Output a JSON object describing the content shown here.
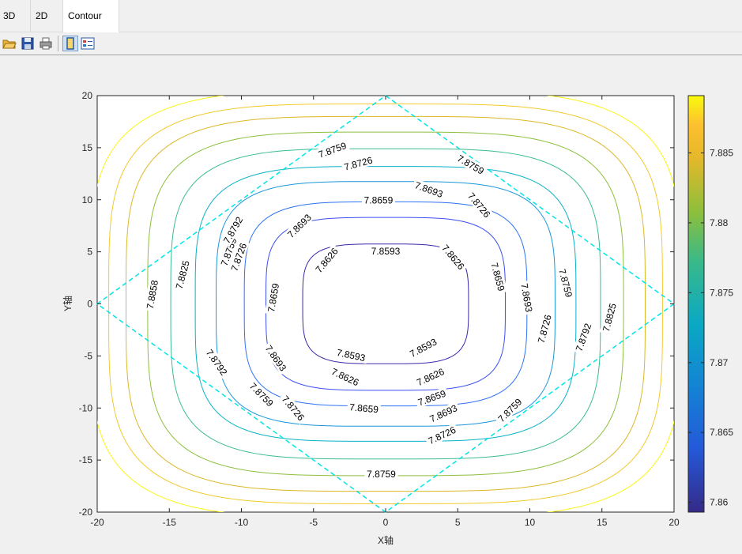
{
  "tabs": [
    {
      "label": "3D"
    },
    {
      "label": "2D"
    },
    {
      "label": "Contour line",
      "active": true
    }
  ],
  "toolbar": {
    "icons": [
      "open-folder-icon",
      "save-icon",
      "print-icon",
      "single-view-icon",
      "property-view-icon"
    ]
  },
  "chart_data": {
    "type": "contour",
    "xlabel": "X轴",
    "ylabel": "Y轴",
    "xlim": [
      -20,
      20
    ],
    "ylim": [
      -20,
      20
    ],
    "xticks": [
      -20,
      -15,
      -10,
      -5,
      0,
      5,
      10,
      15,
      20
    ],
    "yticks": [
      -20,
      -15,
      -10,
      -5,
      0,
      5,
      10,
      15,
      20
    ],
    "colorbar": {
      "range": [
        7.8593,
        7.8891
      ],
      "ticks": [
        7.86,
        7.865,
        7.87,
        7.875,
        7.88,
        7.885
      ],
      "colormap": "parula"
    },
    "boundary": {
      "shape": "diamond",
      "vertices": [
        [
          0,
          20
        ],
        [
          20,
          0
        ],
        [
          0,
          -20
        ],
        [
          -20,
          0
        ]
      ],
      "style": "dashed",
      "color": "#00e5e5"
    },
    "levels": [
      {
        "value": 7.8593,
        "label": "7.8593",
        "half": 5.75,
        "power": 4.0,
        "color": "#3e26a8"
      },
      {
        "value": 7.8626,
        "label": "7.8626",
        "half": 8.3,
        "power": 4.0,
        "color": "#3c4ff0"
      },
      {
        "value": 7.8659,
        "label": "7.8659",
        "half": 9.8,
        "power": 4.0,
        "color": "#2d73f5"
      },
      {
        "value": 7.8693,
        "label": "7.8693",
        "half": 11.75,
        "power": 4.0,
        "color": "#1a97dc"
      },
      {
        "value": 7.8726,
        "label": "7.8726",
        "half": 13.2,
        "power": 4.0,
        "color": "#0bb1c8"
      },
      {
        "value": 7.8759,
        "label": "7.8759",
        "half": 14.9,
        "power": 4.0,
        "color": "#3bbd8f"
      },
      {
        "value": 7.8792,
        "label": "7.8792",
        "half": 16.5,
        "power": 4.0,
        "color": "#8cbf3c"
      },
      {
        "value": 7.8825,
        "label": "7.8825",
        "half": 18.0,
        "power": 4.0,
        "color": "#dcb82a"
      },
      {
        "value": 7.8858,
        "label": "7.8858",
        "half": 19.2,
        "power": 4.0,
        "color": "#f2c92e"
      },
      {
        "value": 7.8891,
        "label": "",
        "half": 20.5,
        "power": 4.0,
        "color": "#f9f516"
      }
    ],
    "contour_labels": [
      {
        "text": "7.8593",
        "x": 0,
        "y": 5.1,
        "angle": 0
      },
      {
        "text": "7.8593",
        "x": -2.4,
        "y": -4.9,
        "angle": 12
      },
      {
        "text": "7.8593",
        "x": 2.6,
        "y": -4.2,
        "angle": -28
      },
      {
        "text": "7.8626",
        "x": -4.1,
        "y": 4.2,
        "angle": -50
      },
      {
        "text": "7.8626",
        "x": 4.7,
        "y": 4.5,
        "angle": 50
      },
      {
        "text": "7.8626",
        "x": -2.8,
        "y": -7.0,
        "angle": 25
      },
      {
        "text": "7.8626",
        "x": 3.1,
        "y": -7.0,
        "angle": -25
      },
      {
        "text": "7.8659",
        "x": -0.5,
        "y": 10.0,
        "angle": 0
      },
      {
        "text": "7.8659",
        "x": -7.8,
        "y": 0.6,
        "angle": -80
      },
      {
        "text": "7.8659",
        "x": 7.8,
        "y": 2.6,
        "angle": 75
      },
      {
        "text": "7.8659",
        "x": -1.5,
        "y": -10.0,
        "angle": 5
      },
      {
        "text": "7.8659",
        "x": 3.2,
        "y": -9.0,
        "angle": -20
      },
      {
        "text": "7.8693",
        "x": 3.0,
        "y": 11.0,
        "angle": 20
      },
      {
        "text": "7.8693",
        "x": -6.0,
        "y": 7.5,
        "angle": -45
      },
      {
        "text": "7.8693",
        "x": 9.8,
        "y": 0.6,
        "angle": 80
      },
      {
        "text": "7.8693",
        "x": -7.6,
        "y": -5.2,
        "angle": 55
      },
      {
        "text": "7.8693",
        "x": 4.0,
        "y": -10.5,
        "angle": -25
      },
      {
        "text": "7.8726",
        "x": -1.9,
        "y": 13.5,
        "angle": -15
      },
      {
        "text": "7.8726",
        "x": 6.5,
        "y": 9.5,
        "angle": 50
      },
      {
        "text": "7.8726",
        "x": -10.2,
        "y": 4.5,
        "angle": -70
      },
      {
        "text": "7.8726",
        "x": 11.0,
        "y": -2.4,
        "angle": -75
      },
      {
        "text": "7.8726",
        "x": -6.4,
        "y": -10.0,
        "angle": 50
      },
      {
        "text": "7.8726",
        "x": 3.9,
        "y": -12.6,
        "angle": -25
      },
      {
        "text": "7.8759",
        "x": -3.7,
        "y": 14.8,
        "angle": -20
      },
      {
        "text": "7.8759",
        "x": 5.9,
        "y": 13.4,
        "angle": 30
      },
      {
        "text": "7.8759",
        "x": -10.9,
        "y": 5.0,
        "angle": -70
      },
      {
        "text": "7.8759",
        "x": 12.5,
        "y": 2.0,
        "angle": 75
      },
      {
        "text": "7.8759",
        "x": -8.6,
        "y": -8.7,
        "angle": 45
      },
      {
        "text": "7.8759",
        "x": 8.6,
        "y": -10.2,
        "angle": -45
      },
      {
        "text": "7.8759",
        "x": -0.3,
        "y": -16.3,
        "angle": 0
      },
      {
        "text": "7.8792",
        "x": -10.6,
        "y": 7.1,
        "angle": -60
      },
      {
        "text": "7.8792",
        "x": -11.7,
        "y": -5.6,
        "angle": 55
      },
      {
        "text": "7.8792",
        "x": 13.7,
        "y": -3.2,
        "angle": -70
      },
      {
        "text": "7.8825",
        "x": -14.1,
        "y": 2.8,
        "angle": -75
      },
      {
        "text": "7.8825",
        "x": 15.5,
        "y": -1.3,
        "angle": -75
      },
      {
        "text": "7.8858",
        "x": -16.2,
        "y": 0.9,
        "angle": -80
      }
    ]
  }
}
